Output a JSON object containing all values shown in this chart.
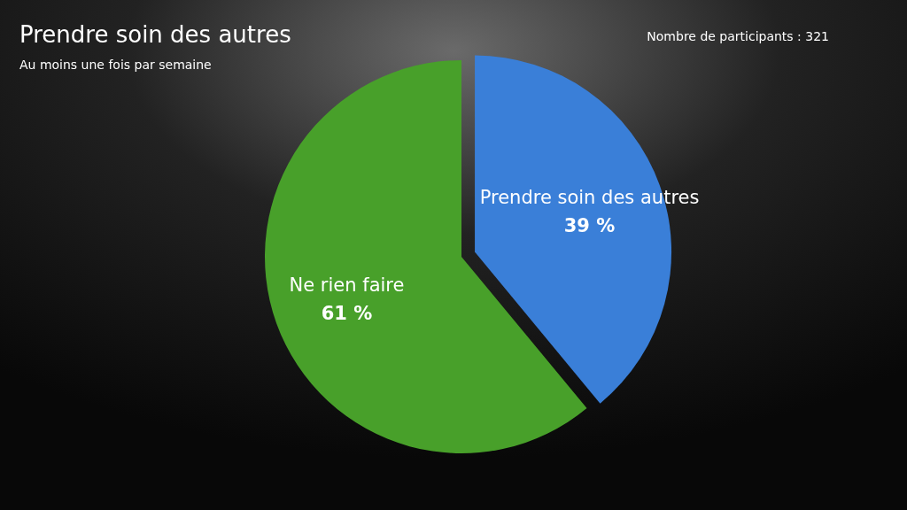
{
  "chart_data": {
    "type": "pie",
    "title": "Prendre soin des autres",
    "subtitle": "Au moins une fois par semaine",
    "annotations": [
      "Nombre de participants : 321"
    ],
    "categories": [
      "Prendre soin des autres",
      "Ne rien faire"
    ],
    "values": [
      39,
      61
    ],
    "value_labels": [
      "39 %",
      "61 %"
    ],
    "colors": [
      "#3a7fd8",
      "#48a02a"
    ]
  }
}
